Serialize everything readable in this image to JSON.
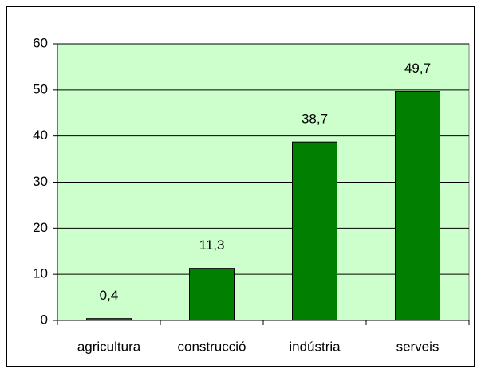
{
  "chart_data": {
    "type": "bar",
    "categories": [
      "agricultura",
      "construcció",
      "indústria",
      "serveis"
    ],
    "values": [
      0.4,
      11.3,
      38.7,
      49.7
    ],
    "value_labels": [
      "0,4",
      "11,3",
      "38,7",
      "49,7"
    ],
    "color": "#007f00",
    "plot_background": "#ccffcc",
    "ylim": [
      0,
      60
    ],
    "yticks": [
      0,
      10,
      20,
      30,
      40,
      50,
      60
    ],
    "grid": true
  }
}
